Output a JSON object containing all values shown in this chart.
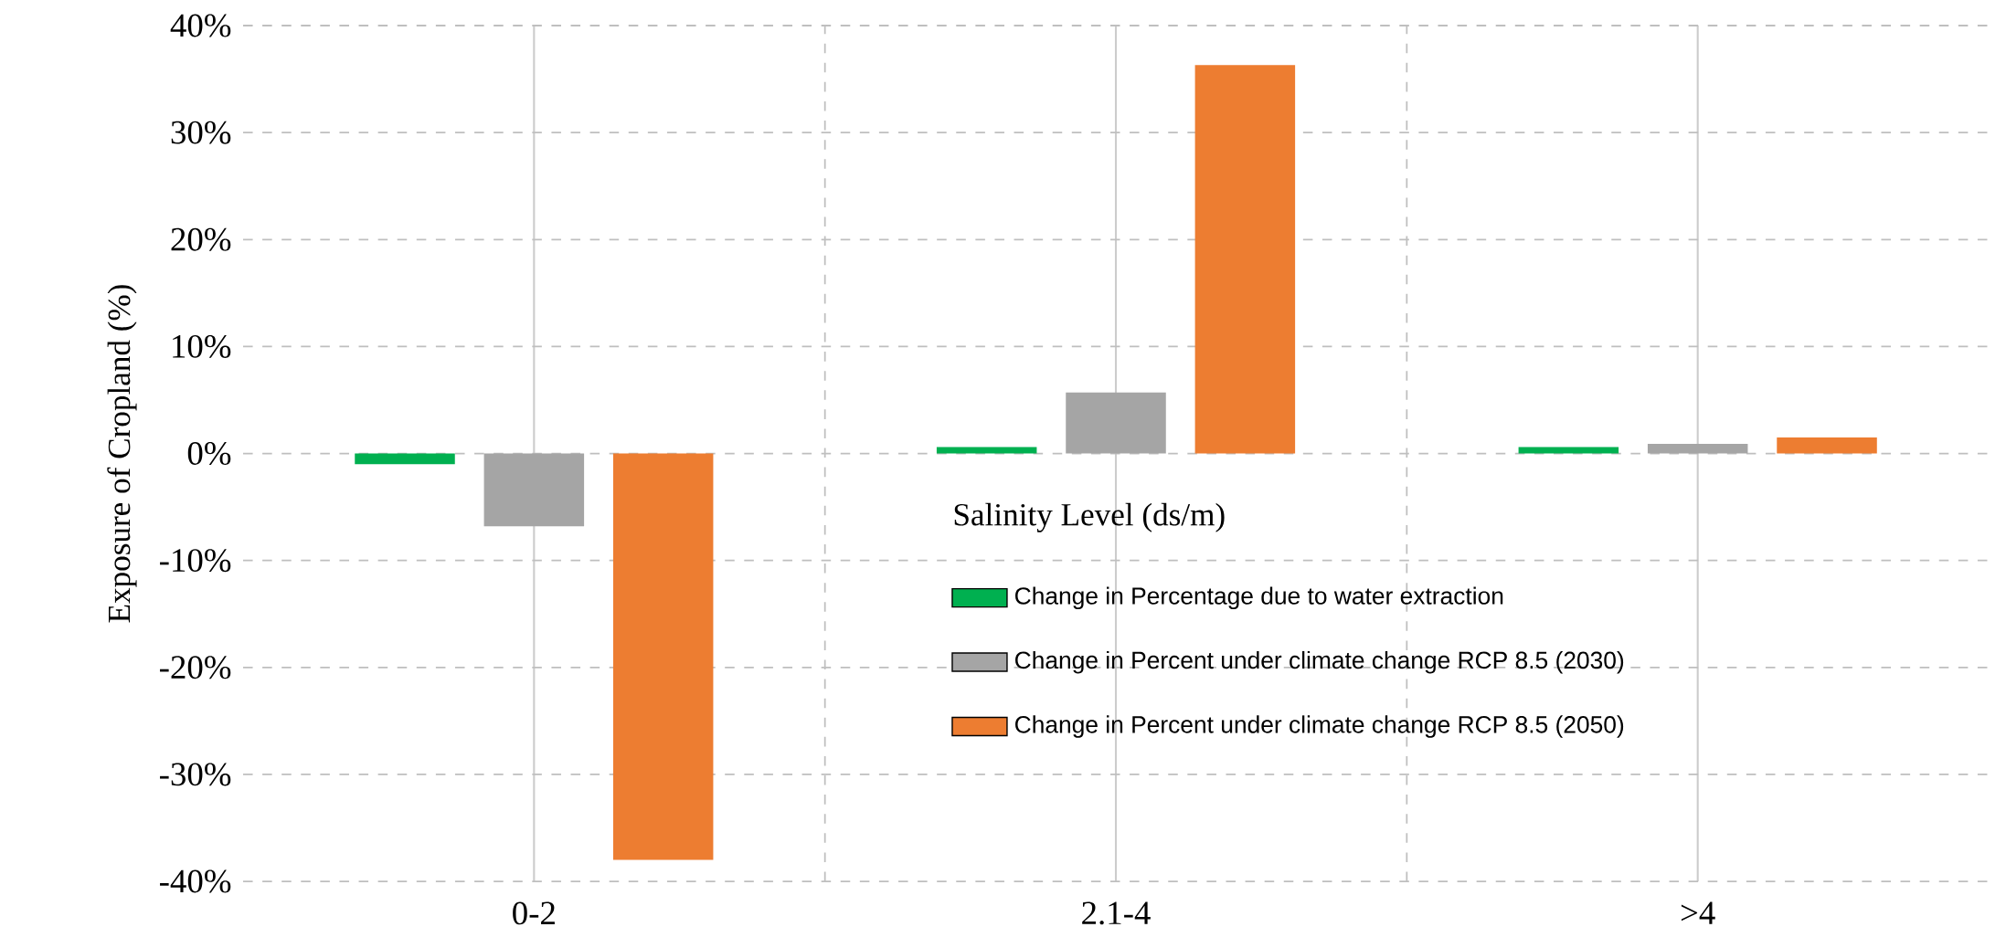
{
  "chart_data": {
    "type": "bar",
    "xlabel": "Salinity Level (ds/m)",
    "ylabel": "Exposure of Cropland (%)",
    "categories": [
      "0-2",
      "2.1-4",
      ">4"
    ],
    "series": [
      {
        "name": "Change in Percentage due to water extraction",
        "color": "#00b050",
        "values": [
          -1.0,
          0.6,
          0.6
        ]
      },
      {
        "name": "Change in Percent under climate change RCP 8.5 (2030)",
        "color": "#a5a5a5",
        "values": [
          -6.8,
          5.7,
          0.9
        ]
      },
      {
        "name": "Change in Percent under climate change RCP 8.5 (2050)",
        "color": "#ed7d31",
        "values": [
          -38.0,
          36.3,
          1.5
        ]
      }
    ],
    "ylim": [
      -40,
      40
    ],
    "yticks": [
      {
        "value": -40,
        "label": "-40%"
      },
      {
        "value": -30,
        "label": "-30%"
      },
      {
        "value": -20,
        "label": "-20%"
      },
      {
        "value": -10,
        "label": "-10%"
      },
      {
        "value": 0,
        "label": "0%"
      },
      {
        "value": 10,
        "label": "10%"
      },
      {
        "value": 20,
        "label": "20%"
      },
      {
        "value": 30,
        "label": "30%"
      },
      {
        "value": 40,
        "label": "40%"
      }
    ],
    "grid": true,
    "legend": "bottom"
  }
}
